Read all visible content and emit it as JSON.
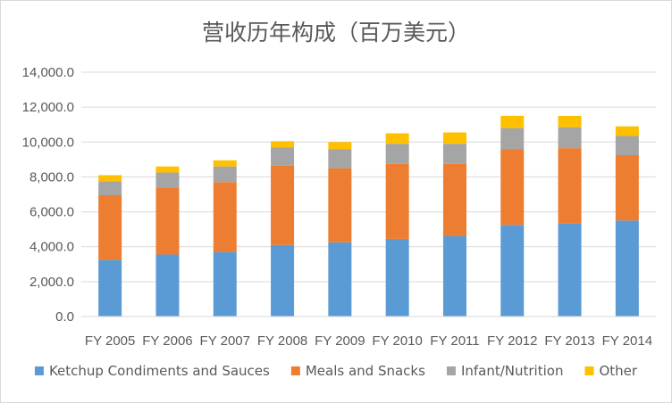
{
  "chart_data": {
    "type": "bar",
    "stacked": true,
    "title": "营收历年构成（百万美元）",
    "categories": [
      "FY 2005",
      "FY 2006",
      "FY 2007",
      "FY 2008",
      "FY 2009",
      "FY 2010",
      "FY 2011",
      "FY 2012",
      "FY 2013",
      "FY 2014"
    ],
    "series": [
      {
        "name": "Ketchup Condiments and Sauces",
        "color": "#5b9bd5",
        "values": [
          3250,
          3550,
          3700,
          4100,
          4250,
          4450,
          4600,
          5250,
          5350,
          5500
        ]
      },
      {
        "name": "Meals and Snacks",
        "color": "#ed7d31",
        "values": [
          3700,
          3850,
          4000,
          4550,
          4250,
          4300,
          4150,
          4350,
          4300,
          3750
        ]
      },
      {
        "name": "Infant/Nutrition",
        "color": "#a5a5a5",
        "values": [
          800,
          850,
          900,
          1050,
          1100,
          1150,
          1150,
          1200,
          1200,
          1100
        ]
      },
      {
        "name": "Other",
        "color": "#ffc000",
        "values": [
          350,
          350,
          350,
          350,
          400,
          600,
          650,
          700,
          650,
          550
        ]
      }
    ],
    "ylim": [
      0,
      14000
    ],
    "yticks": [
      0,
      2000,
      4000,
      6000,
      8000,
      10000,
      12000,
      14000
    ],
    "ytick_labels": [
      "0.0",
      "2,000.0",
      "4,000.0",
      "6,000.0",
      "8,000.0",
      "10,000.0",
      "12,000.0",
      "14,000.0"
    ],
    "grid": true,
    "legend_position": "bottom"
  }
}
